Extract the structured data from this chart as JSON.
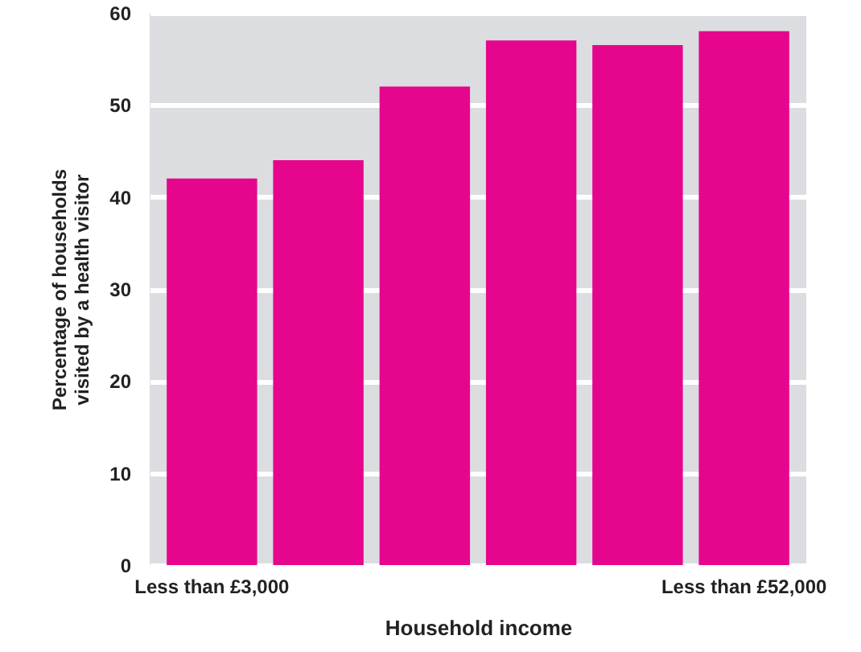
{
  "chart_data": {
    "type": "bar",
    "categories": [
      "Less than £3,000",
      null,
      null,
      null,
      null,
      "Less than £52,000"
    ],
    "values": [
      42,
      44,
      52,
      57,
      56.5,
      58
    ],
    "color": "#e5068d",
    "xlabel": "Household income",
    "ylabel": "Percentage of households\nvisited by a health visitor",
    "ylim": [
      0,
      60
    ],
    "yticks": [
      0,
      10,
      20,
      30,
      40,
      50,
      60
    ],
    "grid": "y"
  }
}
